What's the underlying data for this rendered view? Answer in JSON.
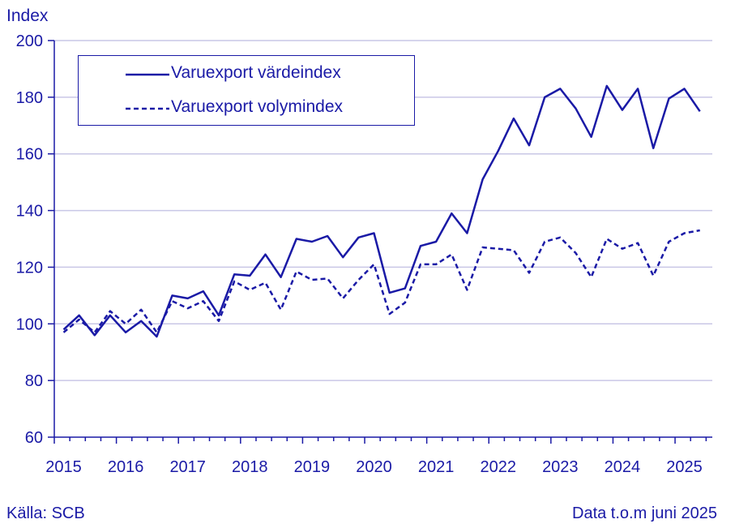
{
  "chart_data": {
    "type": "line",
    "ylabel": "Index",
    "ylim": [
      60,
      200
    ],
    "yticks": [
      60,
      80,
      100,
      120,
      140,
      160,
      180,
      200
    ],
    "year_labels": [
      "2015",
      "2016",
      "2017",
      "2018",
      "2019",
      "2020",
      "2021",
      "2022",
      "2023",
      "2024",
      "2025"
    ],
    "x_start": 2015.0,
    "x_step": 0.25,
    "grid": true,
    "legend_position": "top-left",
    "series": [
      {
        "name": "Varuexport värdeindex",
        "style": "solid",
        "values": [
          98,
          103,
          96,
          103,
          97,
          101,
          95.5,
          110,
          109,
          111.5,
          103,
          117.5,
          117,
          124.5,
          116.5,
          130,
          129,
          131,
          123.5,
          130.5,
          132,
          111,
          112.5,
          127.5,
          129,
          139,
          132,
          151,
          161,
          172.5,
          163,
          180,
          183,
          176,
          166,
          184,
          175.5,
          183,
          162,
          179.5,
          183,
          175
        ]
      },
      {
        "name": "Varuexport volymindex",
        "style": "dashed",
        "values": [
          97,
          101.5,
          97,
          104.5,
          100,
          105,
          97,
          108,
          105.5,
          108,
          101,
          115,
          112,
          114.5,
          105,
          118.5,
          115.5,
          116,
          109,
          115.5,
          121,
          103.5,
          107.5,
          121,
          121,
          124.5,
          112,
          127,
          126.5,
          126,
          118,
          129,
          130.5,
          125,
          116.5,
          130,
          126.5,
          128.5,
          117,
          129,
          132,
          133
        ]
      }
    ],
    "colors": {
      "line": "#1a1aa6",
      "grid": "#c9c7e6"
    }
  },
  "source_text": "Källa: SCB",
  "note_text": "Data t.o.m juni 2025"
}
